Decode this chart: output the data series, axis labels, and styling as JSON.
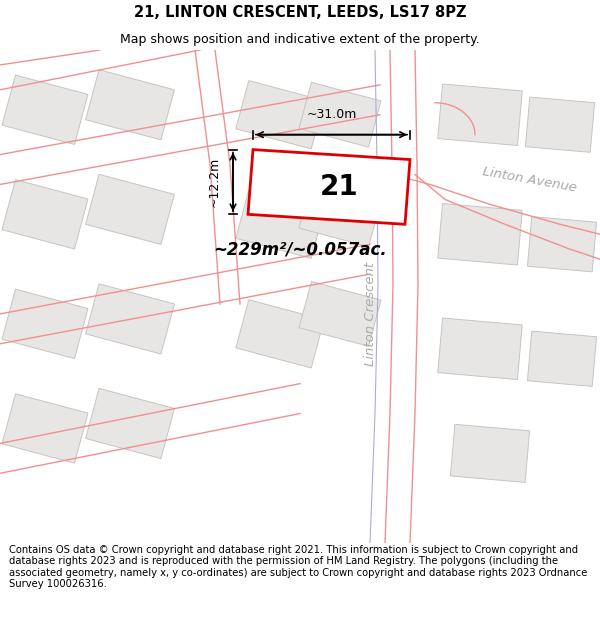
{
  "title_line1": "21, LINTON CRESCENT, LEEDS, LS17 8PZ",
  "title_line2": "Map shows position and indicative extent of the property.",
  "footer_text": "Contains OS data © Crown copyright and database right 2021. This information is subject to Crown copyright and database rights 2023 and is reproduced with the permission of HM Land Registry. The polygons (including the associated geometry, namely x, y co-ordinates) are subject to Crown copyright and database rights 2023 Ordnance Survey 100026316.",
  "property_label": "21",
  "area_label": "~229m²/~0.057ac.",
  "width_label": "~31.0m",
  "height_label": "~12.2m",
  "street_label1": "Linton Crescent",
  "street_label2": "Linton Avenue",
  "map_bg": "#f7f5f5",
  "property_color": "#dd0000",
  "road_color": "#f09090",
  "road_lw": 1.0,
  "building_color": "#e8e6e4",
  "building_outline": "#c8c4c0",
  "title_fontsize": 10.5,
  "subtitle_fontsize": 9,
  "footer_fontsize": 7.2,
  "street_color": "#aaaaaa"
}
